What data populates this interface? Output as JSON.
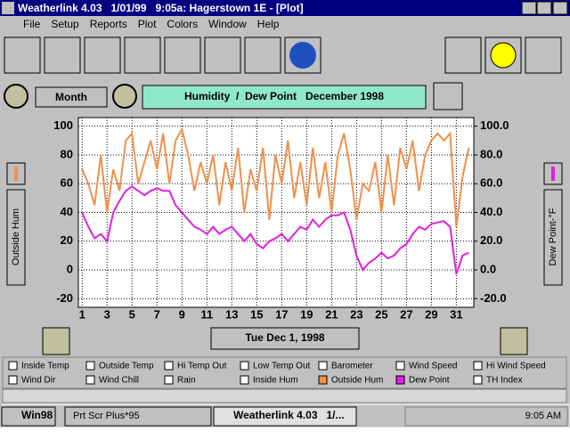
{
  "window": {
    "title": "Weatherlink 4.03   1/01/99   9:05a: Hagerstown 1E - [Plot]",
    "menu": [
      "File",
      "Setup",
      "Reports",
      "Plot",
      "Colors",
      "Window",
      "Help"
    ],
    "period_button": "Month",
    "date_button": "Tue Dec 1, 1998",
    "legend": [
      {
        "label": "Inside Temp",
        "checked": false
      },
      {
        "label": "Outside Temp",
        "checked": false
      },
      {
        "label": "Hi Temp Out",
        "checked": false
      },
      {
        "label": "Low Temp Out",
        "checked": false
      },
      {
        "label": "Barometer",
        "checked": false
      },
      {
        "label": "Wind Speed",
        "checked": false
      },
      {
        "label": "Hi Wind Speed",
        "checked": false
      },
      {
        "label": "Wind Dir",
        "checked": false
      },
      {
        "label": "Wind Chill",
        "checked": false
      },
      {
        "label": "Rain",
        "checked": false
      },
      {
        "label": "Inside Hum",
        "checked": false
      },
      {
        "label": "Outside Hum",
        "checked": true,
        "color": "#f0904a"
      },
      {
        "label": "Dew Point",
        "checked": true,
        "color": "#e020e0"
      },
      {
        "label": "TH Index",
        "checked": false
      }
    ]
  },
  "taskbar": {
    "start": "Win98",
    "tasks": [
      "Prt Scr Plus*95",
      "Weatherlink 4.03   1/..."
    ],
    "clock": "9:05 AM"
  },
  "chart_data": {
    "type": "line",
    "title": "Humidity  /  Dew Point   December 1998",
    "ylabel": "Outside Hum",
    "y2label": "Dew Point-°F",
    "x": [
      1,
      1.5,
      2,
      2.5,
      3,
      3.5,
      4,
      4.5,
      5,
      5.5,
      6,
      6.5,
      7,
      7.5,
      8,
      8.5,
      9,
      9.5,
      10,
      10.5,
      11,
      11.5,
      12,
      12.5,
      13,
      13.5,
      14,
      14.5,
      15,
      15.5,
      16,
      16.5,
      17,
      17.5,
      18,
      18.5,
      19,
      19.5,
      20,
      20.5,
      21,
      21.5,
      22,
      22.5,
      23,
      23.5,
      24,
      24.5,
      25,
      25.5,
      26,
      26.5,
      27,
      27.5,
      28,
      28.5,
      29,
      29.5,
      30,
      30.5,
      31,
      31.5,
      32
    ],
    "series": [
      {
        "name": "Outside Hum",
        "color": "#f0904a",
        "values": [
          70,
          60,
          45,
          80,
          40,
          70,
          55,
          90,
          95,
          60,
          75,
          90,
          70,
          95,
          60,
          90,
          98,
          80,
          55,
          75,
          60,
          80,
          45,
          75,
          55,
          85,
          40,
          70,
          55,
          85,
          35,
          80,
          60,
          90,
          50,
          75,
          45,
          85,
          50,
          75,
          40,
          80,
          95,
          70,
          35,
          60,
          55,
          75,
          40,
          80,
          45,
          85,
          70,
          90,
          55,
          80,
          90,
          95,
          90,
          95,
          30,
          65,
          85
        ]
      },
      {
        "name": "Dew Point",
        "color": "#e020e0",
        "axis": "y2",
        "values": [
          40,
          30,
          22,
          25,
          20,
          40,
          48,
          55,
          58,
          55,
          52,
          55,
          57,
          55,
          55,
          45,
          40,
          35,
          30,
          28,
          25,
          30,
          25,
          28,
          30,
          25,
          20,
          25,
          18,
          15,
          20,
          22,
          25,
          20,
          25,
          30,
          28,
          35,
          30,
          35,
          38,
          38,
          40,
          28,
          10,
          0,
          5,
          8,
          12,
          8,
          10,
          15,
          18,
          25,
          30,
          28,
          32,
          33,
          34,
          30,
          -3,
          10,
          12
        ]
      }
    ],
    "xlim": [
      0.7,
      32.4
    ],
    "xticks": [
      1,
      3,
      5,
      7,
      9,
      11,
      13,
      15,
      17,
      19,
      21,
      23,
      25,
      27,
      29,
      31
    ],
    "ylim": [
      -26,
      106
    ],
    "yticks": [
      100,
      80,
      60,
      40,
      20,
      0,
      -20
    ],
    "y2lim": [
      -26,
      106
    ],
    "y2ticks": [
      {
        "value": 100,
        "label": "100.0"
      },
      {
        "value": 80,
        "label": "80.0"
      },
      {
        "value": 60,
        "label": "60.0"
      },
      {
        "value": 40,
        "label": "40.0"
      },
      {
        "value": 20,
        "label": "20.0"
      },
      {
        "value": 0,
        "label": "0.0"
      },
      {
        "value": -20,
        "label": "-20.0"
      }
    ],
    "grid": true
  }
}
